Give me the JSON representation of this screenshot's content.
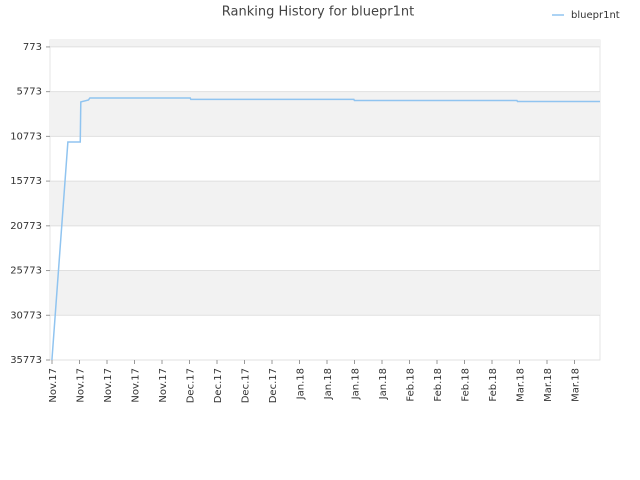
{
  "chart_data": {
    "type": "line",
    "title": "Ranking History for bluepr1nt",
    "x": [
      0.07,
      0.65,
      1.1,
      1.12,
      1.4,
      1.45,
      5.1,
      5.12,
      11.05,
      11.07,
      16.98,
      17.0,
      20
    ],
    "series": [
      {
        "name": "bluepr1nt",
        "color": "#90c4f0",
        "values": [
          35773,
          11400,
          11400,
          6920,
          6700,
          6480,
          6480,
          6640,
          6640,
          6760,
          6760,
          6870,
          6870
        ]
      }
    ],
    "xlim": [
      0,
      20
    ],
    "xticks": [
      {
        "value": 0,
        "label": "Nov.17"
      },
      {
        "value": 1,
        "label": "Nov.17"
      },
      {
        "value": 2,
        "label": "Nov.17"
      },
      {
        "value": 3,
        "label": "Nov.17"
      },
      {
        "value": 4,
        "label": "Nov.17"
      },
      {
        "value": 5,
        "label": "Dec.17"
      },
      {
        "value": 6,
        "label": "Dec.17"
      },
      {
        "value": 7,
        "label": "Dec.17"
      },
      {
        "value": 8,
        "label": "Dec.17"
      },
      {
        "value": 9,
        "label": "Jan.18"
      },
      {
        "value": 10,
        "label": "Jan.18"
      },
      {
        "value": 11,
        "label": "Jan.18"
      },
      {
        "value": 12,
        "label": "Jan.18"
      },
      {
        "value": 13,
        "label": "Feb.18"
      },
      {
        "value": 14,
        "label": "Feb.18"
      },
      {
        "value": 15,
        "label": "Feb.18"
      },
      {
        "value": 16,
        "label": "Feb.18"
      },
      {
        "value": 17,
        "label": "Mar.18"
      },
      {
        "value": 18,
        "label": "Mar.18"
      },
      {
        "value": 19,
        "label": "Mar.18"
      }
    ],
    "ylim": [
      35773,
      0
    ],
    "yticks": [
      773,
      5773,
      10773,
      15773,
      20773,
      25773,
      30773,
      35773
    ],
    "grid": true,
    "legend": "top-right"
  }
}
